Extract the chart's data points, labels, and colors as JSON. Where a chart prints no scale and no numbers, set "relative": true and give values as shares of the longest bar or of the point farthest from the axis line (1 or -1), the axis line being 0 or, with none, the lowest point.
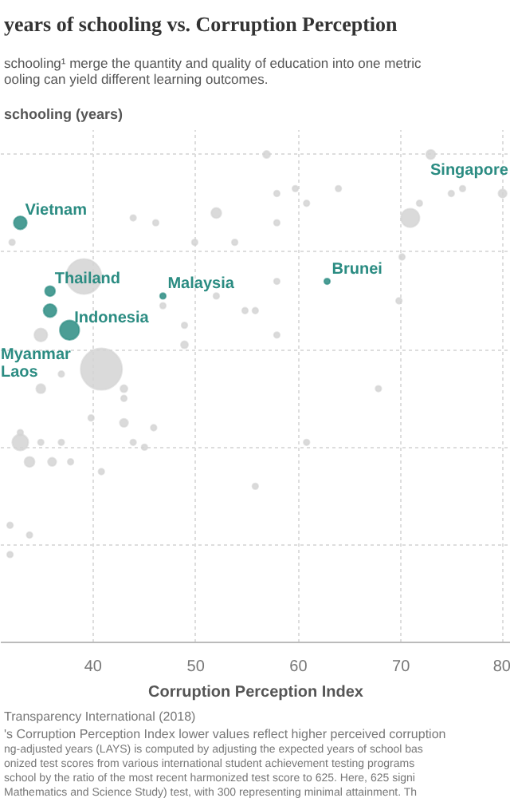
{
  "chart_data": {
    "type": "bubble",
    "title": "years of schooling vs. Corruption Perception",
    "subtitle": "schooling¹ merge the quantity and quality of education into one metric\nooling can yield different learning outcomes.",
    "ylabel": "schooling (years)",
    "xlabel": "Corruption Perception Index",
    "xlim": [
      31,
      80.7
    ],
    "xticks": [
      40,
      50,
      60,
      70,
      80
    ],
    "relative": true,
    "grid": true,
    "tick_labels": "x",
    "series": [
      {
        "color": "#d3d3d3",
        "x": [
          56.9,
          72.9,
          59.7,
          57.9,
          63.9,
          52.0,
          43.9,
          46.1,
          57.9,
          60.8,
          70.9,
          71.8,
          74.9,
          76.0,
          79.9,
          32.1,
          49.9,
          53.8,
          57.9,
          70.1,
          69.8,
          39.1,
          34.9,
          46.8,
          52.0,
          54.8,
          55.8,
          48.9,
          57.9,
          40.8,
          34.9,
          36.9,
          48.9,
          43.0,
          43.0,
          67.8,
          32.9,
          32.9,
          34.9,
          36.9,
          33.8,
          36.0,
          37.8,
          43.0,
          43.9,
          45.0,
          45.9,
          40.8,
          60.8,
          55.8,
          31.9,
          33.8,
          31.9,
          39.8
        ],
        "values": [
          1.0,
          1.0,
          0.93,
          0.92,
          0.93,
          0.88,
          0.87,
          0.86,
          0.86,
          0.9,
          0.87,
          0.9,
          0.92,
          0.93,
          0.92,
          0.82,
          0.82,
          0.82,
          0.74,
          0.79,
          0.7,
          0.75,
          0.63,
          0.69,
          0.71,
          0.68,
          0.68,
          0.65,
          0.63,
          0.56,
          0.52,
          0.55,
          0.61,
          0.52,
          0.5,
          0.52,
          0.43,
          0.41,
          0.41,
          0.41,
          0.37,
          0.37,
          0.37,
          0.45,
          0.41,
          0.4,
          0.44,
          0.35,
          0.41,
          0.32,
          0.24,
          0.22,
          0.18,
          0.46
        ],
        "sizes": [
          0.03,
          0.05,
          0.02,
          0.02,
          0.02,
          0.06,
          0.02,
          0.02,
          0.02,
          0.02,
          0.2,
          0.02,
          0.02,
          0.02,
          0.04,
          0.02,
          0.02,
          0.02,
          0.02,
          0.02,
          0.02,
          0.72,
          0.1,
          0.02,
          0.02,
          0.02,
          0.02,
          0.02,
          0.02,
          1.0,
          0.05,
          0.02,
          0.03,
          0.03,
          0.02,
          0.02,
          0.02,
          0.15,
          0.02,
          0.02,
          0.06,
          0.04,
          0.02,
          0.04,
          0.02,
          0.02,
          0.02,
          0.02,
          0.02,
          0.02,
          0.02,
          0.02,
          0.02,
          0.02
        ]
      },
      {
        "color": "#2b8c82",
        "x": [
          32.9,
          35.8,
          35.8,
          37.7,
          46.8,
          62.8
        ],
        "values": [
          0.86,
          0.72,
          0.68,
          0.64,
          0.71,
          0.74
        ],
        "sizes": [
          0.1,
          0.06,
          0.1,
          0.22,
          0.02,
          0.02
        ]
      }
    ],
    "annotations": [
      {
        "text": "Vietnam",
        "x": 32.9,
        "y": 0.86
      },
      {
        "text": "Thailand",
        "x": 35.8,
        "y": 0.72
      },
      {
        "text": "Indonesia",
        "x": 37.7,
        "y": 0.64
      },
      {
        "text": "Malaysia",
        "x": 46.8,
        "y": 0.71
      },
      {
        "text": "Brunei",
        "x": 62.8,
        "y": 0.74
      },
      "Singapore",
      "Myanmar",
      "Laos",
      "Transparency International (2018)",
      "'s Corruption Perception Index lower values reflect higher perceived corruption",
      "ng-adjusted years (LAYS) is computed by adjusting the expected years of school bas",
      "onized test scores from various international student achievement testing programs",
      "school by the ratio of the most recent harmonized test score to 625. Here, 625 signi",
      "Mathematics and Science Study) test, with 300 representing minimal attainment. Th"
    ]
  }
}
